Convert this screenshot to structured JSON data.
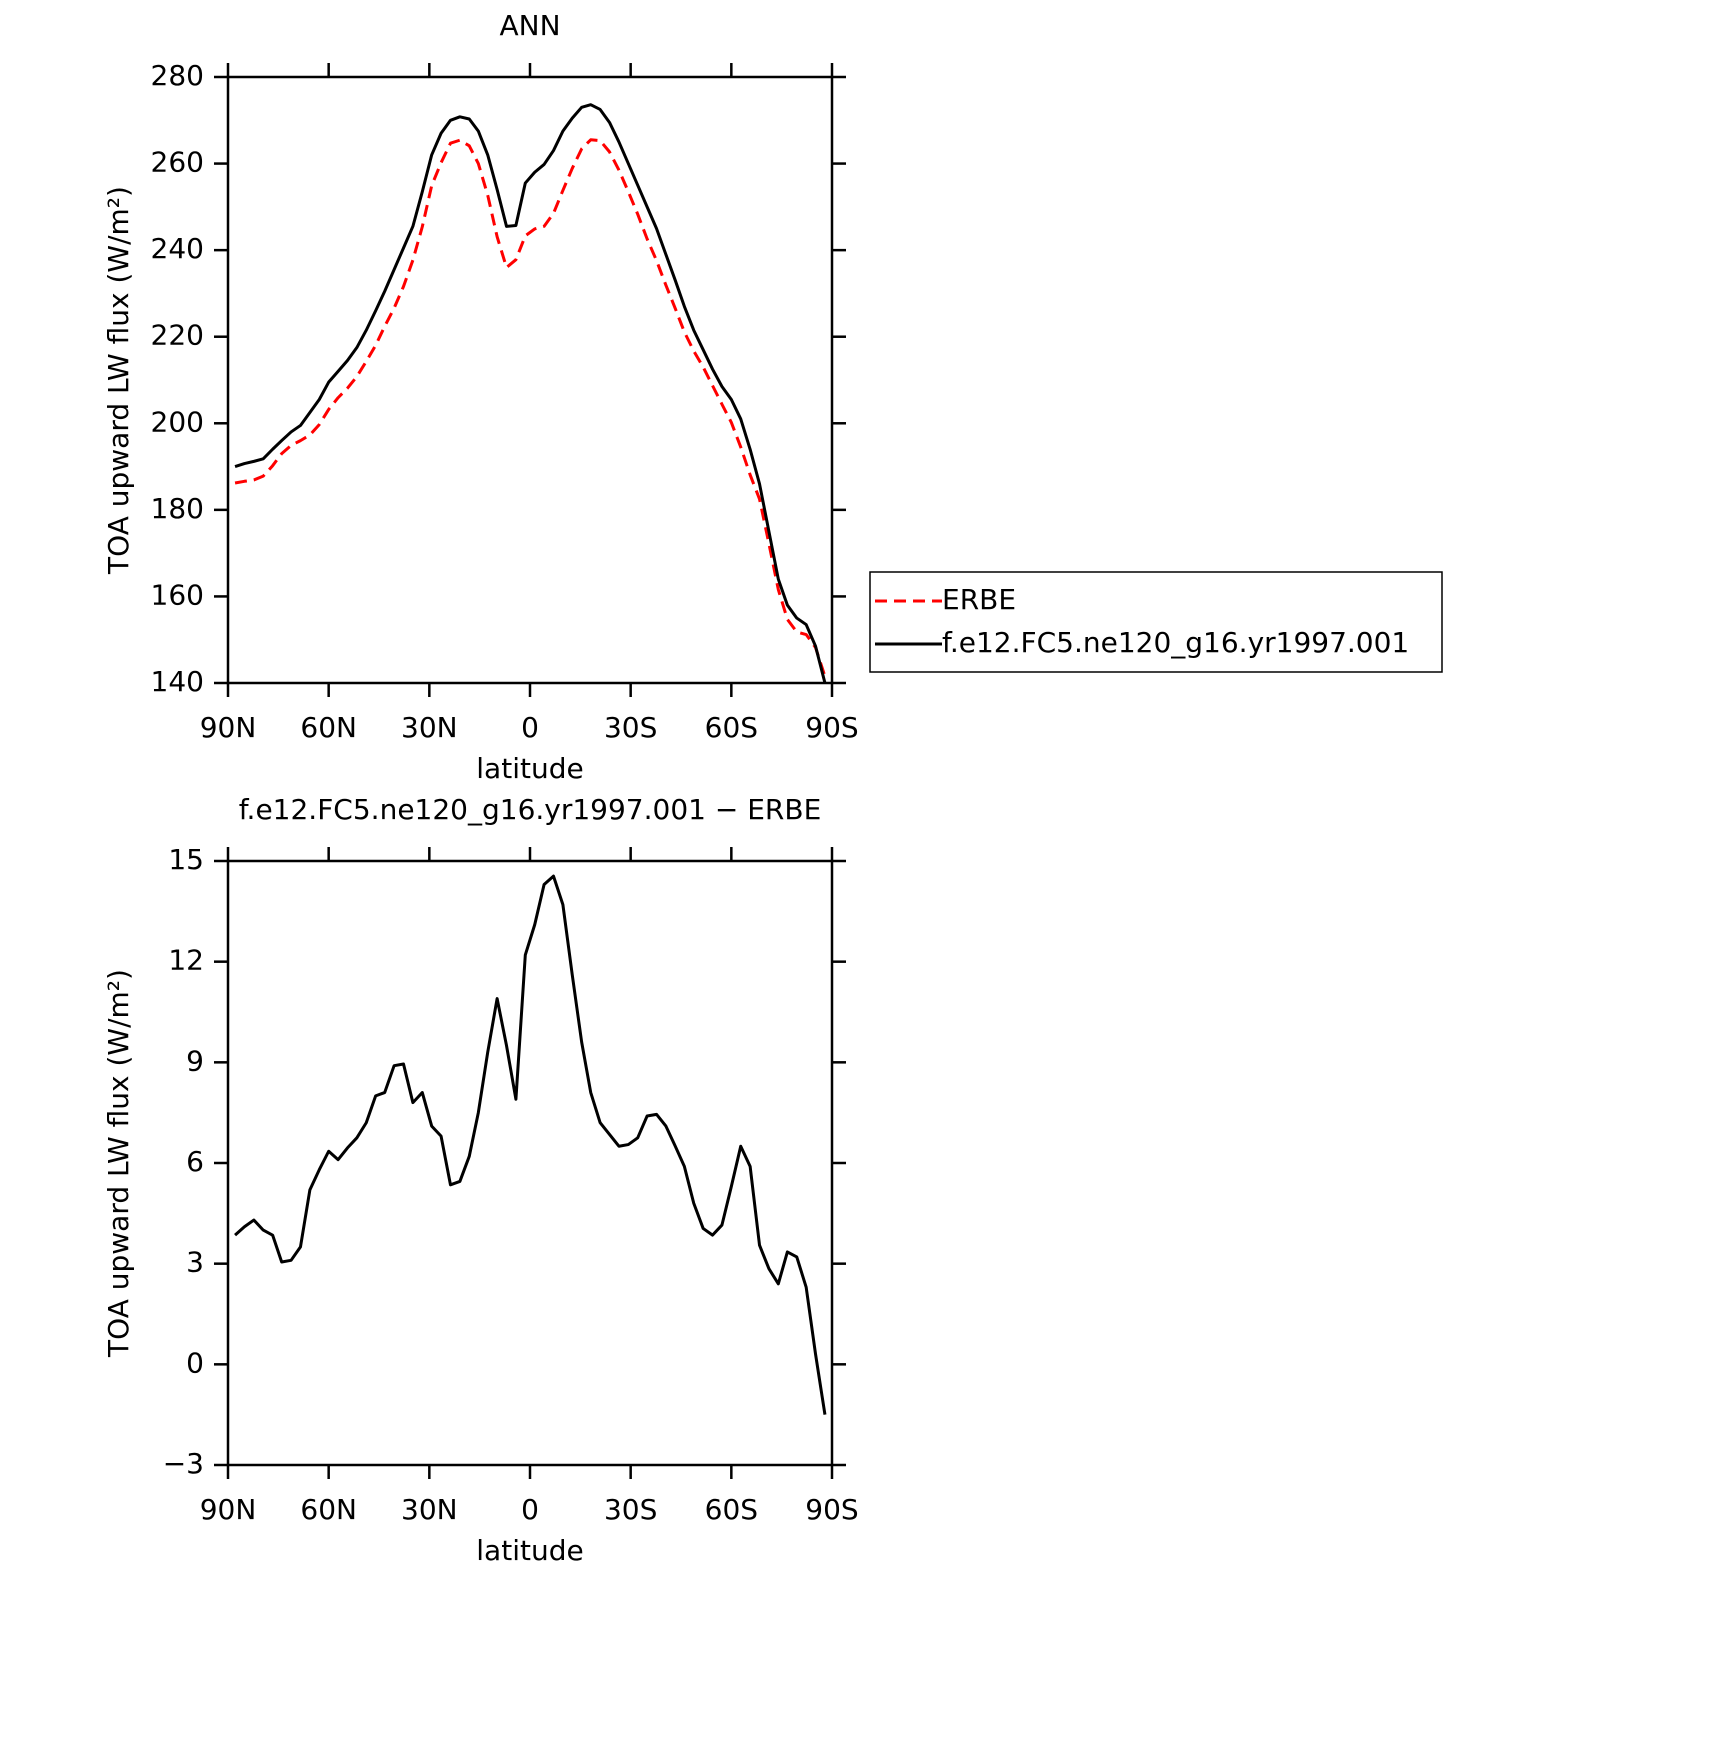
{
  "chart_data": [
    {
      "type": "line",
      "title": "ANN",
      "xlabel": "latitude",
      "ylabel": "TOA upward LW flux (W/m²)",
      "x": [
        87.9,
        85.1,
        82.3,
        79.5,
        76.7,
        74.0,
        71.2,
        68.4,
        65.6,
        62.8,
        60.0,
        57.2,
        54.4,
        51.6,
        48.8,
        46.0,
        43.3,
        40.5,
        37.7,
        34.9,
        32.1,
        29.3,
        26.5,
        23.7,
        20.9,
        18.1,
        15.4,
        12.6,
        9.8,
        7.0,
        4.2,
        1.4,
        -1.4,
        -4.2,
        -7.0,
        -9.8,
        -12.6,
        -15.4,
        -18.1,
        -20.9,
        -23.7,
        -26.5,
        -29.3,
        -32.1,
        -34.9,
        -37.7,
        -40.5,
        -43.3,
        -46.0,
        -48.8,
        -51.6,
        -54.4,
        -57.2,
        -60.0,
        -62.8,
        -65.6,
        -68.4,
        -71.2,
        -74.0,
        -76.7,
        -79.5,
        -82.3,
        -85.1,
        -87.9
      ],
      "series": [
        {
          "name": "ERBE",
          "color": "#ff0000",
          "style": "dashed",
          "values": [
            186.2,
            186.6,
            186.9,
            187.8,
            190.2,
            193.0,
            194.9,
            196.0,
            197.3,
            199.7,
            203.2,
            205.9,
            208.1,
            210.8,
            214.3,
            218.0,
            222.4,
            226.6,
            231.6,
            237.7,
            245.4,
            254.9,
            260.2,
            264.7,
            265.4,
            264.1,
            260.0,
            252.7,
            243.1,
            236.0,
            237.8,
            243.3,
            244.9,
            245.5,
            248.5,
            253.8,
            258.9,
            263.4,
            265.5,
            265.3,
            262.7,
            258.5,
            253.5,
            248.3,
            242.6,
            237.6,
            231.9,
            226.5,
            221.1,
            216.7,
            213.0,
            208.7,
            204.4,
            200.2,
            194.5,
            188.1,
            182.5,
            172.2,
            161.6,
            154.7,
            151.8,
            151.2,
            148.2,
            141.5
          ]
        },
        {
          "name": "f.e12.FC5.ne120_g16.yr1997.001",
          "color": "#000000",
          "style": "solid",
          "values": [
            190,
            190.7,
            191.2,
            191.8,
            194,
            196,
            198,
            199.5,
            202.5,
            205.5,
            209.5,
            212,
            214.5,
            217.5,
            221.5,
            226,
            230.5,
            235.5,
            240.5,
            245.5,
            253.5,
            262,
            267,
            270,
            270.8,
            270.3,
            267.5,
            262,
            254,
            245.5,
            245.7,
            255.5,
            258,
            259.8,
            263,
            267.5,
            270.5,
            273,
            273.6,
            272.5,
            269.5,
            265,
            260,
            255,
            250,
            245,
            239,
            233,
            227,
            221.5,
            217,
            212.5,
            208.5,
            205.5,
            201,
            194,
            186,
            175,
            164,
            158,
            155,
            153.5,
            148.5,
            140
          ]
        }
      ],
      "xlim": [
        90,
        -90
      ],
      "xticks": [
        {
          "value": 90,
          "label": "90N"
        },
        {
          "value": 60,
          "label": "60N"
        },
        {
          "value": 30,
          "label": "30N"
        },
        0,
        {
          "value": -30,
          "label": "30S"
        },
        {
          "value": -60,
          "label": "60S"
        },
        {
          "value": -90,
          "label": "90S"
        }
      ],
      "ylim": [
        140,
        280
      ],
      "yticks": [
        140,
        160,
        180,
        200,
        220,
        240,
        260,
        280
      ],
      "legend": "right"
    },
    {
      "type": "line",
      "title": "f.e12.FC5.ne120_g16.yr1997.001 − ERBE",
      "xlabel": "latitude",
      "ylabel": "TOA upward LW flux (W/m²)",
      "x": [
        87.9,
        85.1,
        82.3,
        79.5,
        76.7,
        74.0,
        71.2,
        68.4,
        65.6,
        62.8,
        60.0,
        57.2,
        54.4,
        51.6,
        48.8,
        46.0,
        43.3,
        40.5,
        37.7,
        34.9,
        32.1,
        29.3,
        26.5,
        23.7,
        20.9,
        18.1,
        15.4,
        12.6,
        9.8,
        7.0,
        4.2,
        1.4,
        -1.4,
        -4.2,
        -7.0,
        -9.8,
        -12.6,
        -15.4,
        -18.1,
        -20.9,
        -23.7,
        -26.5,
        -29.3,
        -32.1,
        -34.9,
        -37.7,
        -40.5,
        -43.3,
        -46.0,
        -48.8,
        -51.6,
        -54.4,
        -57.2,
        -60.0,
        -62.8,
        -65.6,
        -68.4,
        -71.2,
        -74.0,
        -76.7,
        -79.5,
        -82.3,
        -85.1,
        -87.9
      ],
      "series": [
        {
          "color": "#000000",
          "style": "solid",
          "values": [
            3.85,
            4.1,
            4.3,
            4.0,
            3.85,
            3.05,
            3.1,
            3.5,
            5.2,
            5.8,
            6.35,
            6.1,
            6.45,
            6.75,
            7.2,
            8.0,
            8.1,
            8.9,
            8.95,
            7.8,
            8.1,
            7.1,
            6.8,
            5.35,
            5.45,
            6.2,
            7.5,
            9.3,
            10.9,
            9.5,
            7.9,
            12.2,
            13.1,
            14.3,
            14.55,
            13.7,
            11.6,
            9.6,
            8.1,
            7.2,
            6.85,
            6.5,
            6.55,
            6.75,
            7.4,
            7.45,
            7.1,
            6.5,
            5.9,
            4.8,
            4.05,
            3.85,
            4.15,
            5.3,
            6.5,
            5.9,
            3.55,
            2.85,
            2.4,
            3.35,
            3.2,
            2.3,
            0.3,
            -1.5
          ]
        }
      ],
      "xlim": [
        90,
        -90
      ],
      "xticks": [
        {
          "value": 90,
          "label": "90N"
        },
        {
          "value": 60,
          "label": "60N"
        },
        {
          "value": 30,
          "label": "30N"
        },
        0,
        {
          "value": -30,
          "label": "30S"
        },
        {
          "value": -60,
          "label": "60S"
        },
        {
          "value": -90,
          "label": "90S"
        }
      ],
      "ylim": [
        -3,
        15
      ],
      "yticks": [
        {
          "value": -3,
          "label": "−3"
        },
        0,
        3,
        6,
        9,
        12,
        15
      ]
    }
  ]
}
